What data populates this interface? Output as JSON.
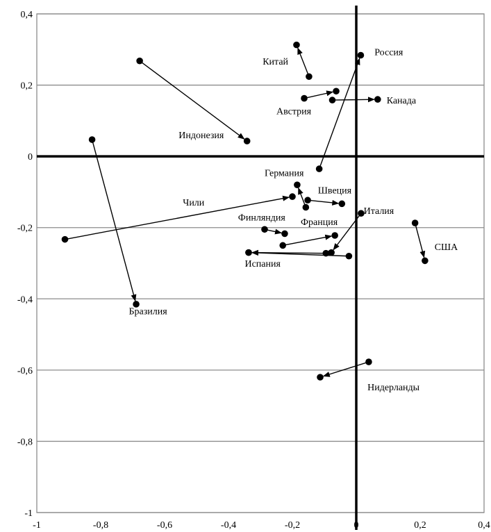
{
  "chart_data": {
    "type": "scatter",
    "title": "",
    "xlabel": "",
    "ylabel": "",
    "xlim": [
      -1,
      0.4
    ],
    "ylim": [
      -1,
      0.4
    ],
    "x_ticks": [
      -1,
      -0.8,
      -0.6,
      -0.4,
      -0.2,
      0,
      0.2,
      0.4
    ],
    "y_ticks": [
      -1,
      -0.8,
      -0.6,
      -0.4,
      -0.2,
      0,
      0.2,
      0.4
    ],
    "x_tick_labels": [
      "-1",
      "-0,8",
      "-0,6",
      "-0,4",
      "-0,2",
      "0",
      "0,2",
      "0,4"
    ],
    "y_tick_labels": [
      "-1",
      "-0,8",
      "-0,6",
      "-0,4",
      "-0,2",
      "0",
      "0,2",
      "0,4"
    ],
    "grid": "horizontal",
    "arrows": [
      {
        "label": "Китай",
        "from": [
          -0.148,
          0.224
        ],
        "to": [
          -0.187,
          0.313
        ]
      },
      {
        "label": "Россия",
        "from": [
          -0.116,
          -0.035
        ],
        "to": [
          0.014,
          0.284
        ]
      },
      {
        "label": "Австрия",
        "from": [
          -0.163,
          0.163
        ],
        "to": [
          -0.063,
          0.183
        ]
      },
      {
        "label": "Канада",
        "from": [
          -0.075,
          0.158
        ],
        "to": [
          0.067,
          0.16
        ]
      },
      {
        "label": "Индонезия",
        "from": [
          -0.678,
          0.268
        ],
        "to": [
          -0.342,
          0.043
        ]
      },
      {
        "label": "Бразилия",
        "from": [
          -0.827,
          0.047
        ],
        "to": [
          -0.689,
          -0.415
        ]
      },
      {
        "label": "Чили",
        "from": [
          -0.912,
          -0.233
        ],
        "to": [
          -0.2,
          -0.113
        ]
      },
      {
        "label": "Швеция",
        "from": [
          -0.152,
          -0.123
        ],
        "to": [
          -0.045,
          -0.133
        ]
      },
      {
        "label": "Германия",
        "from": [
          -0.158,
          -0.143
        ],
        "to": [
          -0.185,
          -0.08
        ]
      },
      {
        "label": "Италия",
        "from": [
          0.015,
          -0.16
        ],
        "to": [
          -0.078,
          -0.27
        ]
      },
      {
        "label": "Франция",
        "from": [
          -0.23,
          -0.25
        ],
        "to": [
          -0.067,
          -0.222
        ]
      },
      {
        "label": "Финляндия",
        "from": [
          -0.287,
          -0.205
        ],
        "to": [
          -0.224,
          -0.217
        ]
      },
      {
        "label": "Испания",
        "from": [
          -0.023,
          -0.28
        ],
        "to": [
          -0.337,
          -0.27
        ]
      },
      {
        "label": "США",
        "from": [
          0.184,
          -0.187
        ],
        "to": [
          0.215,
          -0.293
        ]
      },
      {
        "label": "Нидерланды",
        "from": [
          0.039,
          -0.577
        ],
        "to": [
          -0.113,
          -0.62
        ]
      },
      {
        "label": "",
        "from": [
          -0.095,
          -0.272
        ],
        "to": [
          -0.337,
          -0.27
        ]
      }
    ],
    "labels": [
      {
        "text": "Китай",
        "x": -0.293,
        "y": 0.258
      },
      {
        "text": "Россия",
        "x": 0.057,
        "y": 0.284
      },
      {
        "text": "Австрия",
        "x": -0.25,
        "y": 0.118
      },
      {
        "text": "Канада",
        "x": 0.095,
        "y": 0.148
      },
      {
        "text": "Индонезия",
        "x": -0.556,
        "y": 0.051
      },
      {
        "text": "Германия",
        "x": -0.287,
        "y": -0.055
      },
      {
        "text": "Швеция",
        "x": -0.12,
        "y": -0.104
      },
      {
        "text": "Чили",
        "x": -0.543,
        "y": -0.138
      },
      {
        "text": "Италия",
        "x": 0.023,
        "y": -0.162
      },
      {
        "text": "Финляндия",
        "x": -0.37,
        "y": -0.18
      },
      {
        "text": "Франция",
        "x": -0.174,
        "y": -0.193
      },
      {
        "text": "США",
        "x": 0.245,
        "y": -0.263
      },
      {
        "text": "Испания",
        "x": -0.349,
        "y": -0.31
      },
      {
        "text": "Бразилия",
        "x": -0.712,
        "y": -0.443
      },
      {
        "text": "Нидерланды",
        "x": 0.035,
        "y": -0.657
      }
    ]
  }
}
